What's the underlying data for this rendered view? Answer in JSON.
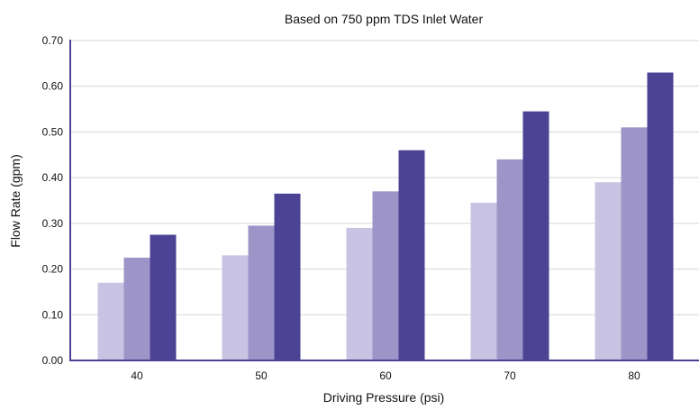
{
  "chart_data": {
    "type": "bar",
    "title": "Based on 750 ppm TDS Inlet Water",
    "xlabel": "Driving Pressure (psi)",
    "ylabel": "Flow Rate (gpm)",
    "categories": [
      "40",
      "50",
      "60",
      "70",
      "80"
    ],
    "ylim": [
      0,
      0.7
    ],
    "yticks": [
      "0.00",
      "0.10",
      "0.20",
      "0.30",
      "0.40",
      "0.50",
      "0.60",
      "0.70"
    ],
    "grid": true,
    "series": [
      {
        "values": [
          0.17,
          0.23,
          0.29,
          0.345,
          0.39
        ],
        "color": "#c8c3e2"
      },
      {
        "values": [
          0.225,
          0.295,
          0.37,
          0.44,
          0.51
        ],
        "color": "#9d95c8"
      },
      {
        "values": [
          0.275,
          0.365,
          0.46,
          0.545,
          0.63
        ],
        "color": "#4c4394"
      }
    ]
  }
}
